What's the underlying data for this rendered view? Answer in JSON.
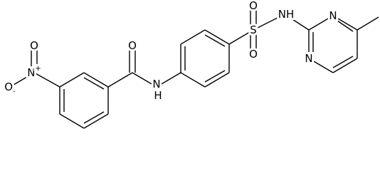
{
  "atoms": [
    {
      "label": "O"
    },
    {
      "label": "N",
      "charge": "+"
    },
    {
      "label": "O",
      "charge": "-"
    },
    {
      "label": "O"
    },
    {
      "label": "N",
      "hydrogen": "H"
    },
    {
      "label": "S"
    },
    {
      "label": "O"
    },
    {
      "label": "O"
    },
    {
      "label": "N",
      "hydrogen": "H"
    },
    {
      "label": "N"
    },
    {
      "label": "N"
    }
  ]
}
